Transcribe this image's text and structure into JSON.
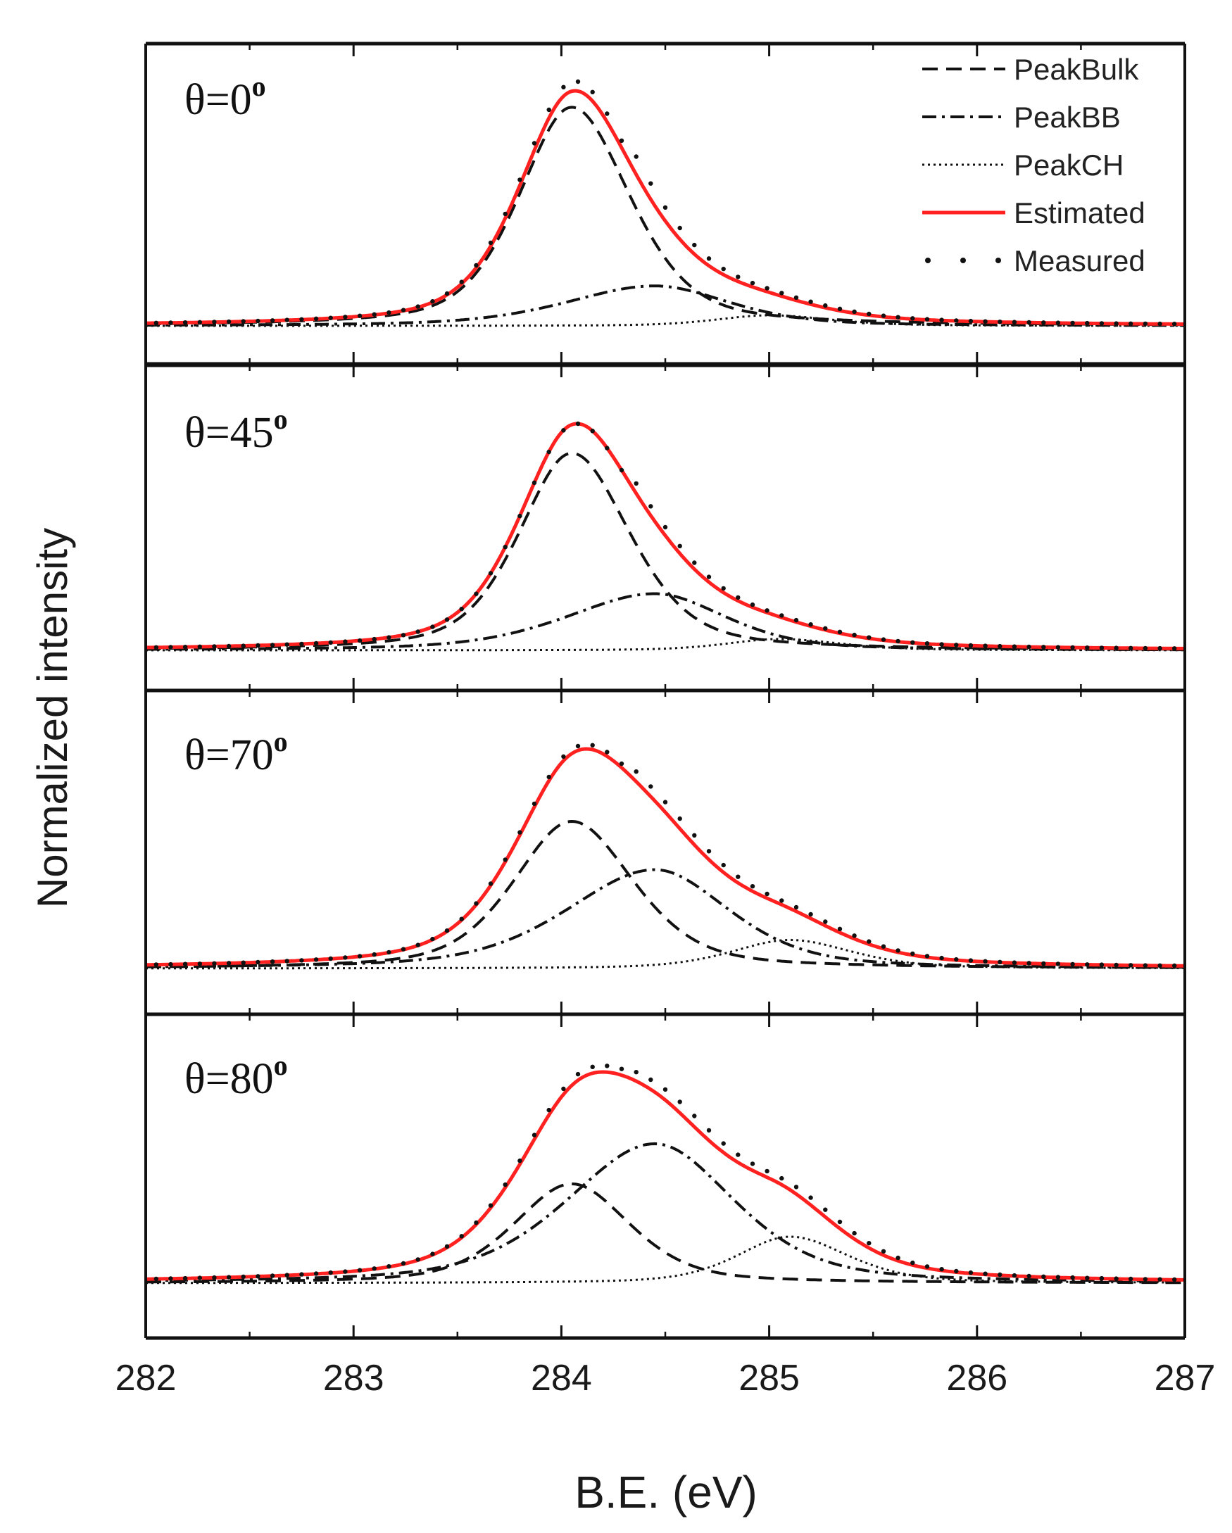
{
  "chart_data": {
    "type": "line",
    "xlabel": "B.E. (eV)",
    "ylabel": "Normalized intensity",
    "xlim": [
      282,
      287
    ],
    "xticks": [
      "282",
      "283",
      "284",
      "285",
      "286",
      "287"
    ],
    "ylim": [
      0,
      1.3
    ],
    "grid": false,
    "legend_position": "top-right",
    "legend": [
      {
        "name": "PeakBulk",
        "style": "dashed",
        "color": "#111111"
      },
      {
        "name": "PeakBB",
        "style": "dash-dot",
        "color": "#111111"
      },
      {
        "name": "PeakCH",
        "style": "dotted",
        "color": "#111111"
      },
      {
        "name": "Estimated",
        "style": "solid",
        "color": "#ff2020"
      },
      {
        "name": "Measured",
        "style": "markers",
        "color": "#111111"
      }
    ],
    "panels": [
      {
        "label": "θ=0",
        "label_superscript": "o",
        "series": [
          {
            "name": "PeakBulk",
            "center": 284.05,
            "amplitude": 0.93,
            "width_left": 0.3,
            "width_right": 0.33
          },
          {
            "name": "PeakBB",
            "center": 284.45,
            "amplitude": 0.17,
            "width_left": 0.5,
            "width_right": 0.42
          },
          {
            "name": "PeakCH",
            "center": 285.0,
            "amplitude": 0.045,
            "width_left": 0.3,
            "width_right": 0.35
          },
          {
            "name": "Estimated",
            "peak_be": 284.07,
            "peak_intensity": 1.0
          },
          {
            "name": "Measured",
            "peak_be": 284.1,
            "peak_intensity": 1.04
          }
        ]
      },
      {
        "label": "θ=45",
        "label_superscript": "o",
        "series": [
          {
            "name": "PeakBulk",
            "center": 284.05,
            "amplitude": 0.87,
            "width_left": 0.3,
            "width_right": 0.33
          },
          {
            "name": "PeakBB",
            "center": 284.45,
            "amplitude": 0.25,
            "width_left": 0.5,
            "width_right": 0.4
          },
          {
            "name": "PeakCH",
            "center": 285.05,
            "amplitude": 0.05,
            "width_left": 0.3,
            "width_right": 0.35
          },
          {
            "name": "Estimated",
            "peak_be": 284.08,
            "peak_intensity": 1.0
          },
          {
            "name": "Measured",
            "peak_be": 284.1,
            "peak_intensity": 1.0
          }
        ]
      },
      {
        "label": "θ=70",
        "label_superscript": "o",
        "series": [
          {
            "name": "PeakBulk",
            "center": 284.05,
            "amplitude": 0.67,
            "width_left": 0.33,
            "width_right": 0.35
          },
          {
            "name": "PeakBB",
            "center": 284.45,
            "amplitude": 0.45,
            "width_left": 0.5,
            "width_right": 0.42
          },
          {
            "name": "PeakCH",
            "center": 285.1,
            "amplitude": 0.13,
            "width_left": 0.33,
            "width_right": 0.35
          },
          {
            "name": "Estimated",
            "peak_be": 284.12,
            "peak_intensity": 1.0
          },
          {
            "name": "Measured",
            "peak_be": 284.1,
            "peak_intensity": 1.02
          }
        ]
      },
      {
        "label": "θ=80",
        "label_superscript": "o",
        "series": [
          {
            "name": "PeakBulk",
            "center": 284.05,
            "amplitude": 0.47,
            "width_left": 0.33,
            "width_right": 0.33
          },
          {
            "name": "PeakBB",
            "center": 284.45,
            "amplitude": 0.66,
            "width_left": 0.5,
            "width_right": 0.45
          },
          {
            "name": "PeakCH",
            "center": 285.1,
            "amplitude": 0.22,
            "width_left": 0.3,
            "width_right": 0.33
          },
          {
            "name": "Estimated",
            "peak_be": 284.25,
            "peak_intensity": 1.0
          },
          {
            "name": "Measured",
            "peak_be": 284.2,
            "peak_intensity": 1.03
          }
        ]
      }
    ]
  }
}
